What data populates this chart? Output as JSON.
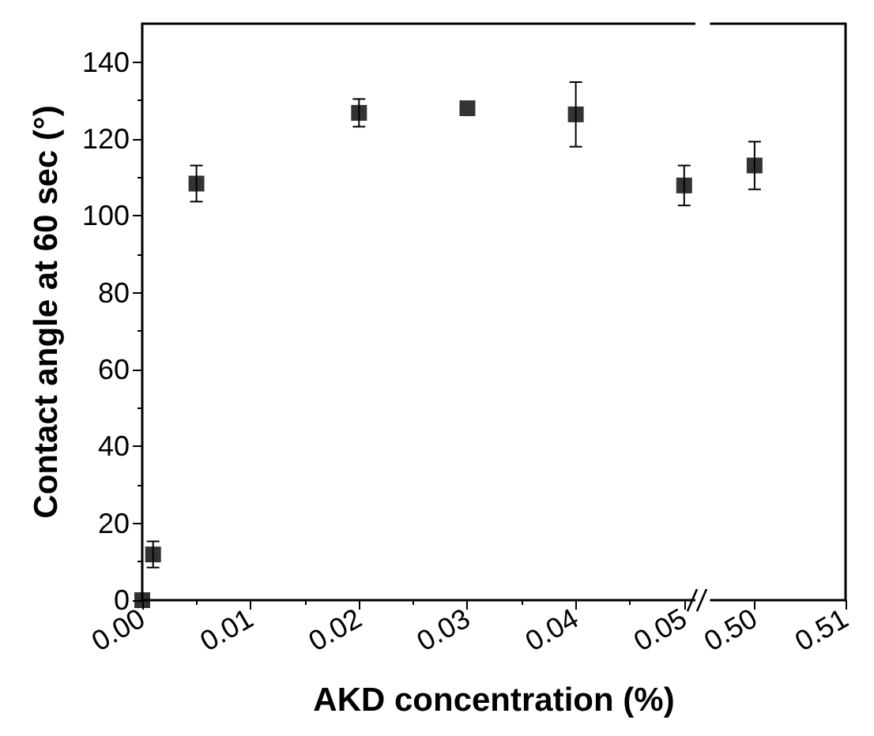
{
  "chart_data": [
    {
      "type": "scatter",
      "xlabel": "AKD concentration (%)",
      "ylabel": "Contact angle at 60 sec (°)",
      "color": "#000000",
      "marker": "square",
      "x": [
        0,
        0.001,
        0.005,
        0.02,
        0.03,
        0.04,
        0.05
      ],
      "values": [
        0,
        11.9,
        108.4,
        126.8,
        128.0,
        126.4,
        107.9
      ],
      "errors": [
        null,
        3.4,
        4.7,
        3.6,
        null,
        8.4,
        5.2
      ],
      "xlim": [
        0,
        0.051
      ],
      "xticks": [
        {
          "value": 0,
          "label": "0.00"
        },
        {
          "value": 0.01,
          "label": "0.01"
        },
        {
          "value": 0.02,
          "label": "0.02"
        },
        {
          "value": 0.03,
          "label": "0.03"
        },
        {
          "value": 0.04,
          "label": "0.04"
        },
        {
          "value": 0.05,
          "label": "0.05"
        }
      ],
      "ylim": [
        0,
        150
      ],
      "yticks": [
        0,
        20,
        40,
        60,
        80,
        100,
        120,
        140
      ]
    },
    {
      "type": "scatter",
      "color": "#000000",
      "marker": "square",
      "x": [
        0.5
      ],
      "values": [
        113.1
      ],
      "errors": [
        6.2
      ],
      "xlim": [
        0.4952,
        0.51
      ],
      "xticks": [
        {
          "value": 0.5,
          "label": "0.50"
        },
        {
          "value": 0.51,
          "label": "0.51"
        }
      ],
      "ylim": [
        0,
        150
      ],
      "yticks": [
        0,
        20,
        40,
        60,
        80,
        100,
        120,
        140
      ],
      "tick_labels": "x"
    }
  ]
}
